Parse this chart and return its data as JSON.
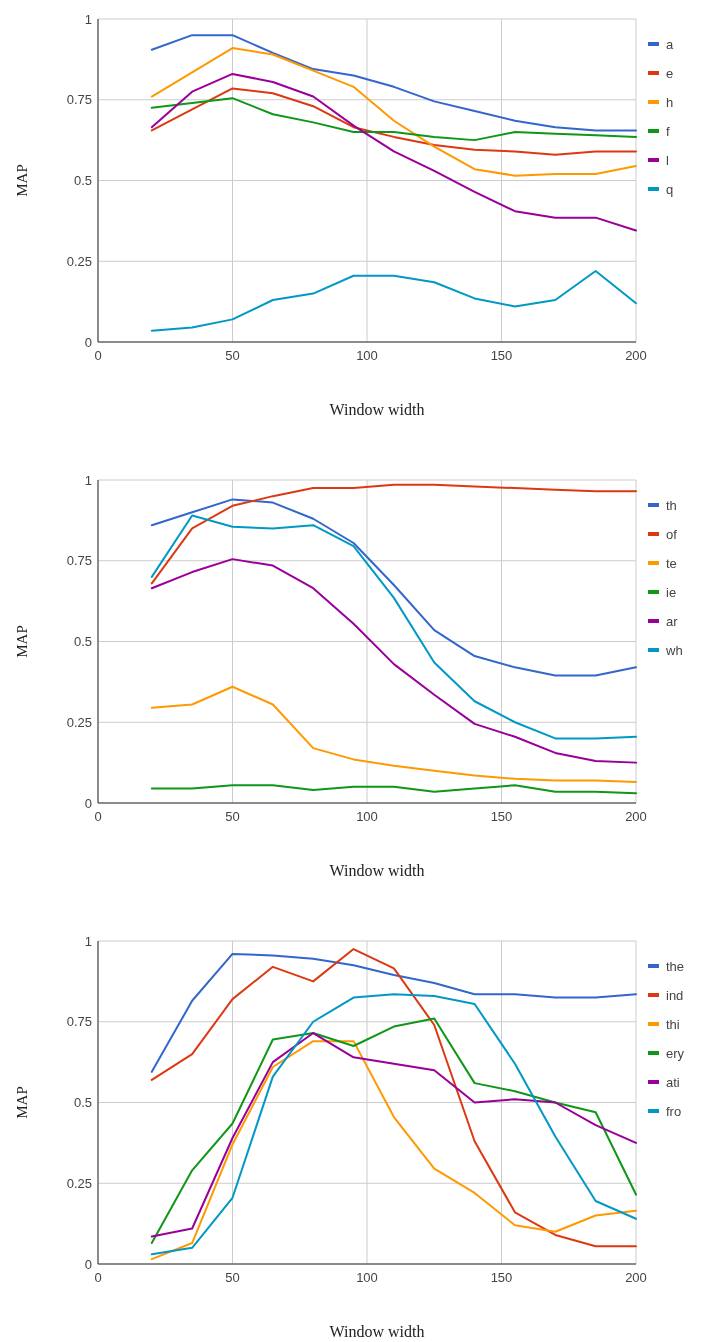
{
  "chart_data": [
    {
      "type": "line",
      "xlabel": "Window width",
      "ylabel": "MAP",
      "x": [
        20,
        35,
        50,
        65,
        80,
        95,
        110,
        125,
        140,
        155,
        170,
        185,
        200
      ],
      "xlim": [
        0,
        200
      ],
      "xticks": [
        0,
        50,
        100,
        150,
        200
      ],
      "ylim": [
        0,
        1
      ],
      "yticks": [
        0,
        0.25,
        0.5,
        0.75,
        1
      ],
      "grid": true,
      "legend": "right",
      "series": [
        {
          "name": "a",
          "color": "#3366cc",
          "values": [
            0.905,
            0.95,
            0.95,
            0.895,
            0.845,
            0.825,
            0.79,
            0.745,
            0.715,
            0.685,
            0.665,
            0.655,
            0.655
          ]
        },
        {
          "name": "e",
          "color": "#dc3912",
          "values": [
            0.655,
            0.72,
            0.785,
            0.77,
            0.73,
            0.665,
            0.635,
            0.61,
            0.595,
            0.59,
            0.58,
            0.59,
            0.59
          ]
        },
        {
          "name": "h",
          "color": "#ff9900",
          "values": [
            0.76,
            0.835,
            0.91,
            0.89,
            0.84,
            0.79,
            0.685,
            0.605,
            0.535,
            0.515,
            0.52,
            0.52,
            0.545
          ]
        },
        {
          "name": "f",
          "color": "#109618",
          "values": [
            0.725,
            0.74,
            0.755,
            0.705,
            0.68,
            0.65,
            0.65,
            0.635,
            0.625,
            0.65,
            0.645,
            0.64,
            0.635
          ]
        },
        {
          "name": "l",
          "color": "#990099",
          "values": [
            0.665,
            0.775,
            0.83,
            0.805,
            0.76,
            0.67,
            0.59,
            0.53,
            0.465,
            0.405,
            0.385,
            0.385,
            0.345
          ]
        },
        {
          "name": "q",
          "color": "#0099c6",
          "values": [
            0.035,
            0.045,
            0.07,
            0.13,
            0.15,
            0.205,
            0.205,
            0.185,
            0.135,
            0.11,
            0.13,
            0.22,
            0.12
          ]
        }
      ]
    },
    {
      "type": "line",
      "xlabel": "Window width",
      "ylabel": "MAP",
      "x": [
        20,
        35,
        50,
        65,
        80,
        95,
        110,
        125,
        140,
        155,
        170,
        185,
        200
      ],
      "xlim": [
        0,
        200
      ],
      "xticks": [
        0,
        50,
        100,
        150,
        200
      ],
      "ylim": [
        0,
        1
      ],
      "yticks": [
        0,
        0.25,
        0.5,
        0.75,
        1
      ],
      "grid": true,
      "legend": "right",
      "series": [
        {
          "name": "th",
          "color": "#3366cc",
          "values": [
            0.86,
            0.9,
            0.94,
            0.93,
            0.88,
            0.805,
            0.675,
            0.535,
            0.455,
            0.42,
            0.395,
            0.395,
            0.42
          ]
        },
        {
          "name": "of",
          "color": "#dc3912",
          "values": [
            0.68,
            0.85,
            0.92,
            0.95,
            0.975,
            0.975,
            0.985,
            0.985,
            0.98,
            0.975,
            0.97,
            0.965,
            0.965
          ]
        },
        {
          "name": "te",
          "color": "#ff9900",
          "values": [
            0.295,
            0.305,
            0.36,
            0.305,
            0.17,
            0.135,
            0.115,
            0.1,
            0.085,
            0.075,
            0.07,
            0.07,
            0.065
          ]
        },
        {
          "name": "ie",
          "color": "#109618",
          "values": [
            0.045,
            0.045,
            0.055,
            0.055,
            0.04,
            0.05,
            0.05,
            0.035,
            0.045,
            0.055,
            0.035,
            0.035,
            0.03
          ]
        },
        {
          "name": "ar",
          "color": "#990099",
          "values": [
            0.665,
            0.715,
            0.755,
            0.735,
            0.665,
            0.555,
            0.43,
            0.335,
            0.245,
            0.205,
            0.155,
            0.13,
            0.125
          ]
        },
        {
          "name": "wh",
          "color": "#0099c6",
          "values": [
            0.7,
            0.89,
            0.855,
            0.85,
            0.86,
            0.795,
            0.635,
            0.435,
            0.315,
            0.25,
            0.2,
            0.2,
            0.205
          ]
        }
      ]
    },
    {
      "type": "line",
      "xlabel": "Window width",
      "ylabel": "MAP",
      "x": [
        20,
        35,
        50,
        65,
        80,
        95,
        110,
        125,
        140,
        155,
        170,
        185,
        200
      ],
      "xlim": [
        0,
        200
      ],
      "xticks": [
        0,
        50,
        100,
        150,
        200
      ],
      "ylim": [
        0,
        1
      ],
      "yticks": [
        0,
        0.25,
        0.5,
        0.75,
        1
      ],
      "grid": true,
      "legend": "right",
      "series": [
        {
          "name": "the",
          "color": "#3366cc",
          "values": [
            0.595,
            0.815,
            0.96,
            0.955,
            0.945,
            0.925,
            0.895,
            0.87,
            0.835,
            0.835,
            0.825,
            0.825,
            0.835
          ]
        },
        {
          "name": "ind",
          "color": "#dc3912",
          "values": [
            0.57,
            0.65,
            0.82,
            0.92,
            0.875,
            0.975,
            0.915,
            0.74,
            0.38,
            0.16,
            0.09,
            0.055,
            0.055
          ]
        },
        {
          "name": "thi",
          "color": "#ff9900",
          "values": [
            0.015,
            0.065,
            0.37,
            0.61,
            0.69,
            0.69,
            0.455,
            0.295,
            0.22,
            0.12,
            0.1,
            0.15,
            0.165
          ]
        },
        {
          "name": "ery",
          "color": "#109618",
          "values": [
            0.065,
            0.29,
            0.435,
            0.695,
            0.715,
            0.675,
            0.735,
            0.76,
            0.56,
            0.535,
            0.5,
            0.47,
            0.215
          ]
        },
        {
          "name": "ati",
          "color": "#990099",
          "values": [
            0.085,
            0.11,
            0.39,
            0.625,
            0.715,
            0.64,
            0.62,
            0.6,
            0.5,
            0.51,
            0.5,
            0.43,
            0.375
          ]
        },
        {
          "name": "fro",
          "color": "#0099c6",
          "values": [
            0.03,
            0.05,
            0.205,
            0.58,
            0.75,
            0.825,
            0.835,
            0.83,
            0.805,
            0.62,
            0.395,
            0.195,
            0.14
          ]
        }
      ]
    }
  ]
}
